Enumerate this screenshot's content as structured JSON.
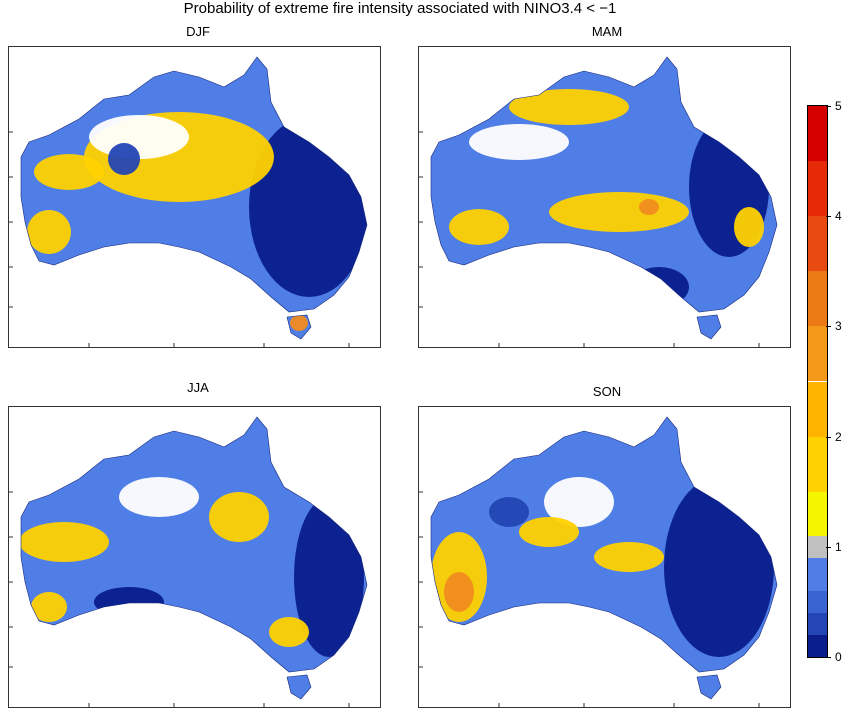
{
  "title": "Probability of extreme fire intensity associated with NINO3.4 < −1",
  "panels": [
    {
      "label": "DJF"
    },
    {
      "label": "MAM"
    },
    {
      "label": "JJA"
    },
    {
      "label": "SON"
    }
  ],
  "colorbar": {
    "ticks": [
      "0",
      "1",
      "2",
      "3",
      "4",
      "5"
    ],
    "range": [
      0,
      5
    ],
    "bands": [
      {
        "from": 0.0,
        "to": 0.2,
        "color": "#0a1e8c"
      },
      {
        "from": 0.2,
        "to": 0.4,
        "color": "#2346b4"
      },
      {
        "from": 0.4,
        "to": 0.6,
        "color": "#3a64d2"
      },
      {
        "from": 0.6,
        "to": 0.9,
        "color": "#4f7fe6"
      },
      {
        "from": 0.9,
        "to": 1.1,
        "color": "#c0c0c0"
      },
      {
        "from": 1.1,
        "to": 1.5,
        "color": "#f5f500"
      },
      {
        "from": 1.5,
        "to": 2.0,
        "color": "#ffd200"
      },
      {
        "from": 2.0,
        "to": 2.5,
        "color": "#ffb400"
      },
      {
        "from": 2.5,
        "to": 3.0,
        "color": "#f59a18"
      },
      {
        "from": 3.0,
        "to": 3.5,
        "color": "#ec7a14"
      },
      {
        "from": 3.5,
        "to": 4.0,
        "color": "#e84a10"
      },
      {
        "from": 4.0,
        "to": 4.5,
        "color": "#e62a08"
      },
      {
        "from": 4.5,
        "to": 5.0,
        "color": "#d40000"
      }
    ]
  },
  "colors": {
    "dark_blue": "#0a1e8c",
    "mid_blue": "#2346b4",
    "light_blue": "#4f7fe6",
    "yellow": "#ffd200",
    "orange": "#f08c1e",
    "red": "#d40000"
  }
}
